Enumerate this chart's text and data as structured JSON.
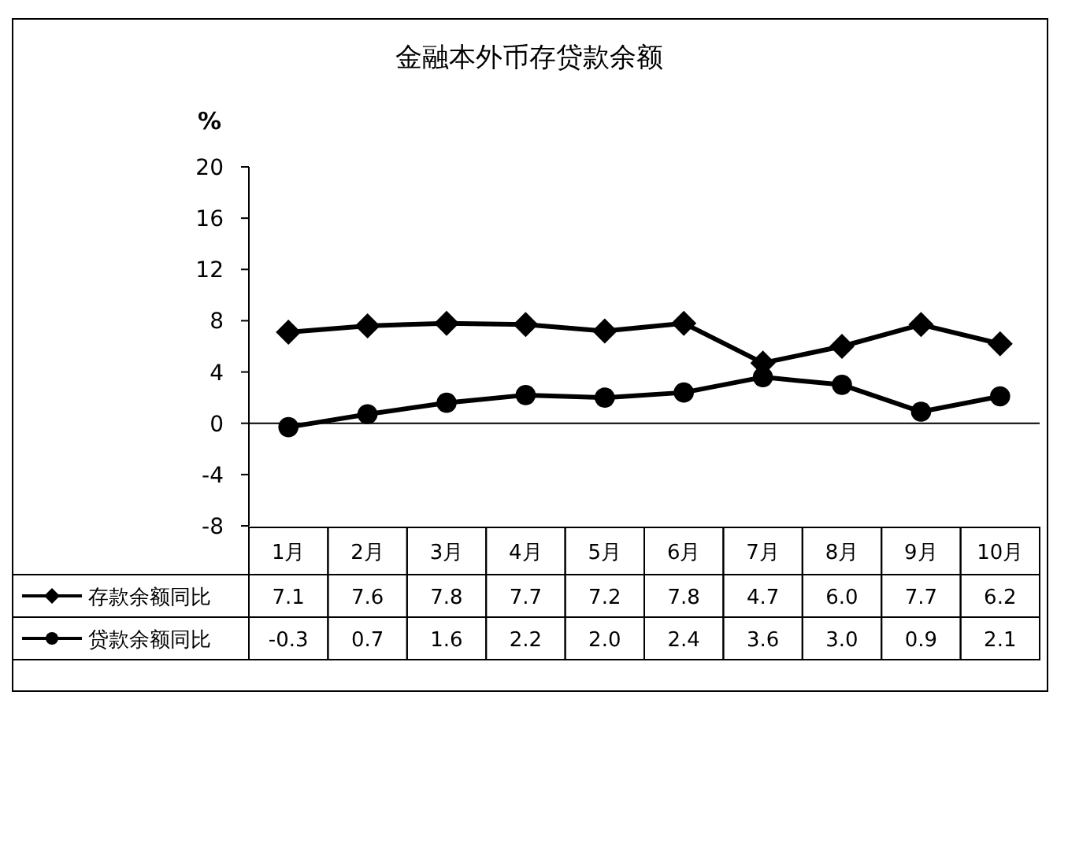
{
  "chart_data": {
    "type": "line",
    "title": "金融本外币存贷款余额",
    "ylabel": "%",
    "categories": [
      "1月",
      "2月",
      "3月",
      "4月",
      "5月",
      "6月",
      "7月",
      "8月",
      "9月",
      "10月"
    ],
    "series": [
      {
        "name": "存款余额同比",
        "color": "#000000",
        "marker": "diamond",
        "values": [
          7.1,
          7.6,
          7.8,
          7.7,
          7.2,
          7.8,
          4.7,
          6.0,
          7.7,
          6.2
        ],
        "value_labels": [
          "7.1",
          "7.6",
          "7.8",
          "7.7",
          "7.2",
          "7.8",
          "4.7",
          "6.0",
          "7.7",
          "6.2"
        ]
      },
      {
        "name": "贷款余额同比",
        "color": "#000000",
        "marker": "circle",
        "values": [
          -0.3,
          0.7,
          1.6,
          2.2,
          2.0,
          2.4,
          3.6,
          3.0,
          0.9,
          2.1
        ],
        "value_labels": [
          "-0.3",
          "0.7",
          "1.6",
          "2.2",
          "2.0",
          "2.4",
          "3.6",
          "3.0",
          "0.9",
          "2.1"
        ]
      }
    ],
    "ylim": [
      -8,
      20
    ],
    "yticks": [
      -8,
      -4,
      0,
      4,
      8,
      12,
      16,
      20
    ],
    "legend": "bottom",
    "line_style": "solid"
  }
}
